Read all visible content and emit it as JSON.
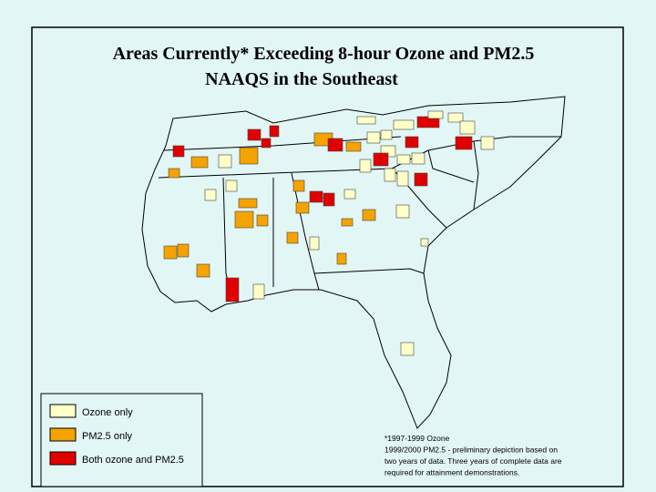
{
  "title": [
    "Areas Currently* Exceeding 8-hour Ozone and PM2.5",
    "NAAQS in the Southeast"
  ],
  "legend": [
    {
      "label": "Ozone only",
      "color": "#ffffc8"
    },
    {
      "label": "PM2.5 only",
      "color": "#f5a300"
    },
    {
      "label": "Both ozone and PM2.5",
      "color": "#e00000"
    }
  ],
  "footnote": [
    "*1997-1999 Ozone",
    "1999/2000 PM2.5 - preliminary depiction based on",
    "two years of data. Three years of complete data are",
    "required for attainment demonstrations."
  ]
}
